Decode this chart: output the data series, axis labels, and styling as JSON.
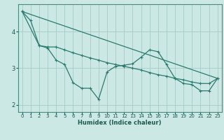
{
  "xlabel": "Humidex (Indice chaleur)",
  "background_color": "#cce8e4",
  "grid_color": "#aacfcb",
  "line_color": "#2a7a6e",
  "xlim": [
    -0.5,
    23.5
  ],
  "ylim": [
    1.8,
    4.75
  ],
  "yticks": [
    2,
    3,
    4
  ],
  "xticks": [
    0,
    1,
    2,
    3,
    4,
    5,
    6,
    7,
    8,
    9,
    10,
    11,
    12,
    13,
    14,
    15,
    16,
    17,
    18,
    19,
    20,
    21,
    22,
    23
  ],
  "series1_x": [
    0,
    1,
    2,
    3,
    4,
    5,
    6,
    7,
    8,
    9,
    10,
    11,
    12,
    13,
    14,
    15,
    16,
    17,
    18,
    19,
    20,
    21,
    22,
    23
  ],
  "series1_y": [
    4.55,
    4.3,
    3.62,
    3.55,
    3.22,
    3.1,
    2.6,
    2.45,
    2.45,
    2.15,
    2.9,
    3.05,
    3.08,
    3.12,
    3.3,
    3.5,
    3.45,
    3.1,
    2.72,
    2.58,
    2.55,
    2.38,
    2.38,
    2.72
  ],
  "series2_x": [
    0,
    2,
    3,
    4,
    5,
    6,
    7,
    8,
    9,
    10,
    11,
    12,
    13,
    14,
    15,
    16,
    17,
    18,
    19,
    20,
    21,
    22,
    23
  ],
  "series2_y": [
    4.55,
    3.62,
    3.58,
    3.58,
    3.5,
    3.42,
    3.35,
    3.28,
    3.22,
    3.15,
    3.1,
    3.05,
    3.0,
    2.95,
    2.88,
    2.82,
    2.78,
    2.72,
    2.68,
    2.62,
    2.58,
    2.58,
    2.72
  ],
  "series3_x": [
    0,
    23
  ],
  "series3_y": [
    4.55,
    2.72
  ]
}
